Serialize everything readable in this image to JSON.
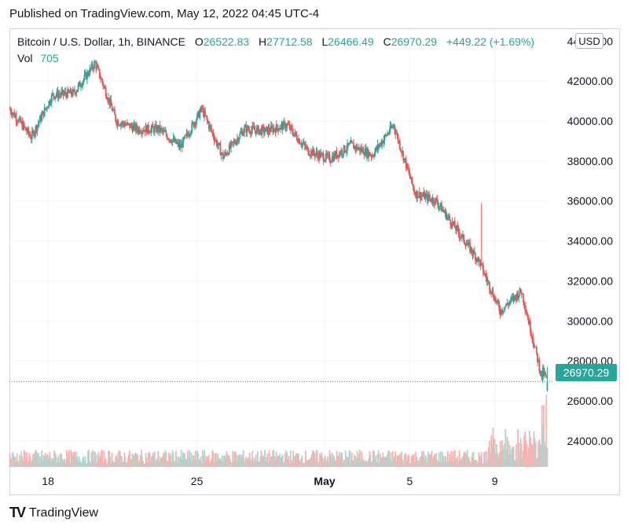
{
  "published_text": "Published on TradingView.com, May 12, 2022 04:45 UTC-4",
  "legend": {
    "symbol": "Bitcoin / U.S. Dollar, 1h, BINANCE",
    "open_label": "O",
    "open": "26522.83",
    "high_label": "H",
    "high": "27712.58",
    "low_label": "L",
    "low": "26466.49",
    "close_label": "C",
    "close": "26970.29",
    "change": "+449.22 (+1.69%)",
    "vol_label": "Vol",
    "vol": "705"
  },
  "currency": "USD",
  "last_price": "26970.29",
  "footer": {
    "logo": "TV",
    "brand": "TradingView"
  },
  "colors": {
    "up": "#26a69a",
    "down": "#ef5350",
    "up_vol": "#a8d8cf",
    "down_vol": "#f5b3b1",
    "grid": "#f0f3fa",
    "text": "#131722"
  },
  "chart_data": {
    "type": "candlestick",
    "interval": "1h",
    "ylim": [
      22700,
      44600
    ],
    "y_ticks": [
      "44000.00",
      "42000.00",
      "40000.00",
      "38000.00",
      "36000.00",
      "34000.00",
      "32000.00",
      "30000.00",
      "28000.00",
      "26000.00",
      "24000.00"
    ],
    "x_ticks": [
      "18",
      "25",
      "May",
      "5",
      "9"
    ],
    "last_price": 26970.29,
    "price_anchors": [
      {
        "date": "Apr 17",
        "price": 40600
      },
      {
        "date": "Apr 18",
        "price": 39200
      },
      {
        "date": "Apr 19",
        "price": 41300
      },
      {
        "date": "Apr 20",
        "price": 41400
      },
      {
        "date": "Apr 21",
        "price": 42900
      },
      {
        "date": "Apr 22",
        "price": 40000
      },
      {
        "date": "Apr 23",
        "price": 39600
      },
      {
        "date": "Apr 24",
        "price": 39600
      },
      {
        "date": "Apr 25",
        "price": 38700
      },
      {
        "date": "Apr 26",
        "price": 40600
      },
      {
        "date": "Apr 27",
        "price": 38200
      },
      {
        "date": "Apr 28",
        "price": 39600
      },
      {
        "date": "Apr 29",
        "price": 39500
      },
      {
        "date": "Apr 30",
        "price": 39800
      },
      {
        "date": "May 1",
        "price": 38500
      },
      {
        "date": "May 2",
        "price": 38100
      },
      {
        "date": "May 3",
        "price": 38800
      },
      {
        "date": "May 4",
        "price": 38300
      },
      {
        "date": "May 5",
        "price": 39800
      },
      {
        "date": "May 6",
        "price": 36400
      },
      {
        "date": "May 7",
        "price": 36000
      },
      {
        "date": "May 8",
        "price": 34500
      },
      {
        "date": "May 9",
        "price": 33000
      },
      {
        "date": "May 10",
        "price": 30500
      },
      {
        "date": "May 11",
        "price": 31500
      },
      {
        "date": "May 12",
        "price": 26970
      }
    ]
  }
}
